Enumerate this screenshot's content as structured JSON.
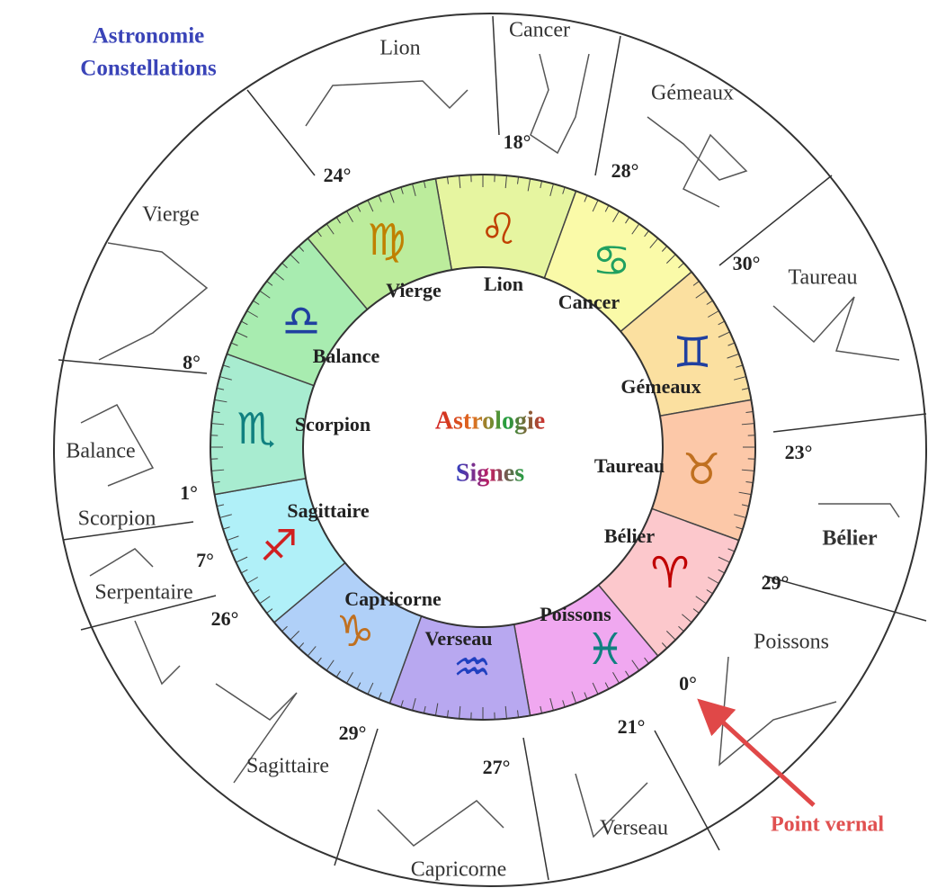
{
  "title": {
    "line1": "Astronomie",
    "line2": "Constellations"
  },
  "center": {
    "line1": "Astrologie",
    "line2": "Signes"
  },
  "signs": [
    {
      "name": "Lion",
      "symbol": "♌"
    },
    {
      "name": "Cancer",
      "symbol": "♋"
    },
    {
      "name": "Gémeaux",
      "symbol": "♊"
    },
    {
      "name": "Taureau",
      "symbol": "♉"
    },
    {
      "name": "Bélier",
      "symbol": "♈"
    },
    {
      "name": "Poissons",
      "symbol": "♓"
    },
    {
      "name": "Verseau",
      "symbol": "♒"
    },
    {
      "name": "Capricorne",
      "symbol": "♑"
    },
    {
      "name": "Sagittaire",
      "symbol": "♐"
    },
    {
      "name": "Scorpion",
      "symbol": "♏"
    },
    {
      "name": "Balance",
      "symbol": "♎"
    },
    {
      "name": "Vierge",
      "symbol": "♍"
    }
  ],
  "constellations": [
    "Lion",
    "Cancer",
    "Gémeaux",
    "Taureau",
    "Bélier",
    "Poissons",
    "Verseau",
    "Capricorne",
    "Sagittaire",
    "Serpentaire",
    "Scorpion",
    "Balance",
    "Vierge"
  ],
  "degrees": [
    "24°",
    "18°",
    "28°",
    "30°",
    "23°",
    "29°",
    "0°",
    "21°",
    "27°",
    "29°",
    "26°",
    "7°",
    "1°",
    "8°"
  ],
  "point_vernal": "Point vernal"
}
